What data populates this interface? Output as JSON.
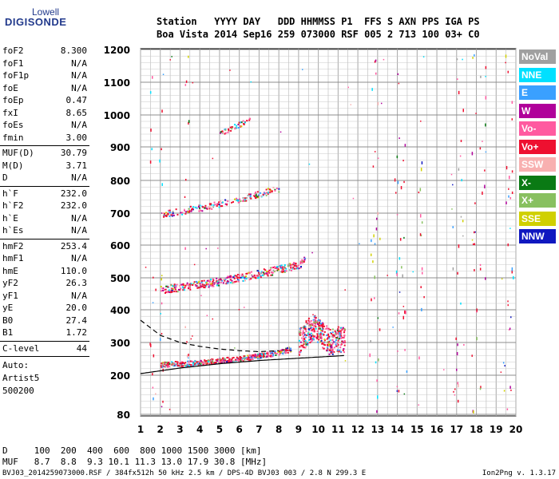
{
  "logo": {
    "top": "Lowell",
    "bottom": "DIGISONDE"
  },
  "header": {
    "line1": "Station   YYYY DAY   DDD HHMMSS P1  FFS S AXN PPS IGA PS",
    "line2": "Boa Vista 2014 Sep16 259 073000 RSF 005 2 713 100 03+ C0"
  },
  "params_group1": [
    {
      "name": "foF2",
      "value": "8.300"
    },
    {
      "name": "foF1",
      "value": "N/A"
    },
    {
      "name": "foF1p",
      "value": "N/A"
    },
    {
      "name": "foE",
      "value": "N/A"
    },
    {
      "name": "foEp",
      "value": "0.47"
    },
    {
      "name": "fxI",
      "value": "8.65"
    },
    {
      "name": "foEs",
      "value": "N/A"
    },
    {
      "name": "fmin",
      "value": "3.00"
    }
  ],
  "params_group2": [
    {
      "name": "MUF(D)",
      "value": "30.79"
    },
    {
      "name": "M(D)",
      "value": "3.71"
    },
    {
      "name": "D",
      "value": "N/A"
    }
  ],
  "params_group3": [
    {
      "name": "h`F",
      "value": "232.0"
    },
    {
      "name": "h`F2",
      "value": "232.0"
    },
    {
      "name": "h`E",
      "value": "N/A"
    },
    {
      "name": "h`Es",
      "value": "N/A"
    }
  ],
  "params_group4": [
    {
      "name": "hmF2",
      "value": "253.4"
    },
    {
      "name": "hmF1",
      "value": "N/A"
    },
    {
      "name": "hmE",
      "value": "110.0"
    },
    {
      "name": "yF2",
      "value": "26.3"
    },
    {
      "name": "yF1",
      "value": "N/A"
    },
    {
      "name": "yE",
      "value": "20.0"
    },
    {
      "name": "B0",
      "value": "27.4"
    },
    {
      "name": "B1",
      "value": "1.72"
    }
  ],
  "clevel": {
    "name": "C-level",
    "value": "44"
  },
  "notes": [
    "Auto:",
    "Artist5",
    "500200"
  ],
  "legend": [
    {
      "label": "NoVal",
      "color": "#a0a0a0"
    },
    {
      "label": "NNE",
      "color": "#00e0ff"
    },
    {
      "label": "E",
      "color": "#3aa0ff"
    },
    {
      "label": "W",
      "color": "#b0009a"
    },
    {
      "label": "Vo-",
      "color": "#ff5aa0"
    },
    {
      "label": "Vo+",
      "color": "#ee1030"
    },
    {
      "label": "SSW",
      "color": "#f8b0b0"
    },
    {
      "label": "X-",
      "color": "#0a7a14"
    },
    {
      "label": "X+",
      "color": "#88c060"
    },
    {
      "label": "SSE",
      "color": "#d0d000"
    },
    {
      "label": "NNW",
      "color": "#1018c0"
    }
  ],
  "muf_table": {
    "row1": "D     100  200  400  600  800 1000 1500 3000 [km]",
    "row2": "MUF   8.7  8.8  9.3 10.1 11.3 13.0 17.9 30.8 [MHz]"
  },
  "footer": {
    "left": "BVJ03_2014259073000.RSF / 384fx512h 50 kHz 2.5 km / DPS-4D BVJ03 003 / 2.8 N 299.3 E",
    "right": "Ion2Png v. 1.3.17"
  },
  "chart_data": {
    "type": "scatter",
    "title": "",
    "xlabel": "",
    "ylabel": "",
    "xlim": [
      1,
      20
    ],
    "ylim": [
      80,
      1200
    ],
    "xticks": [
      1,
      2,
      3,
      4,
      5,
      6,
      7,
      8,
      9,
      10,
      11,
      12,
      13,
      14,
      15,
      16,
      17,
      18,
      19,
      20
    ],
    "yticks": [
      80,
      200,
      300,
      400,
      500,
      600,
      700,
      800,
      900,
      1000,
      1100,
      1200
    ],
    "yscale": "log-like ionogram height",
    "grid": true,
    "series": [
      {
        "x": [
          2.0,
          3.0,
          4.0,
          5.0,
          6.0,
          7.0,
          8.0,
          8.6
        ],
        "y": [
          232,
          234,
          238,
          244,
          250,
          258,
          268,
          280
        ]
      },
      {
        "x": [
          9.0,
          9.4,
          9.8,
          10.2,
          10.6,
          11.0,
          11.3
        ],
        "y": [
          300,
          330,
          350,
          320,
          300,
          310,
          305
        ]
      },
      {
        "x": [
          2.0,
          3.0,
          4.0,
          5.0,
          6.0,
          7.0,
          8.0,
          9.0,
          9.3
        ],
        "y": [
          462,
          470,
          478,
          488,
          500,
          512,
          525,
          540,
          552
        ]
      },
      {
        "x": [
          2.0,
          3.0,
          4.0,
          5.0,
          6.0,
          7.0,
          8.0
        ],
        "y": [
          695,
          705,
          715,
          728,
          742,
          758,
          775
        ]
      },
      {
        "x": [
          5.0,
          5.5,
          6.0,
          6.5
        ],
        "y": [
          940,
          955,
          970,
          985
        ]
      },
      {
        "x": [
          1.0,
          3.0,
          5.0,
          7.0,
          9.0,
          11.3
        ],
        "y": [
          205,
          222,
          235,
          245,
          252,
          260
        ]
      },
      {
        "x": [
          1.0,
          2.0,
          3.0,
          4.0,
          5.0,
          6.0,
          7.0,
          8.0
        ],
        "y": [
          368,
          322,
          300,
          288,
          280,
          275,
          272,
          275
        ]
      }
    ]
  }
}
